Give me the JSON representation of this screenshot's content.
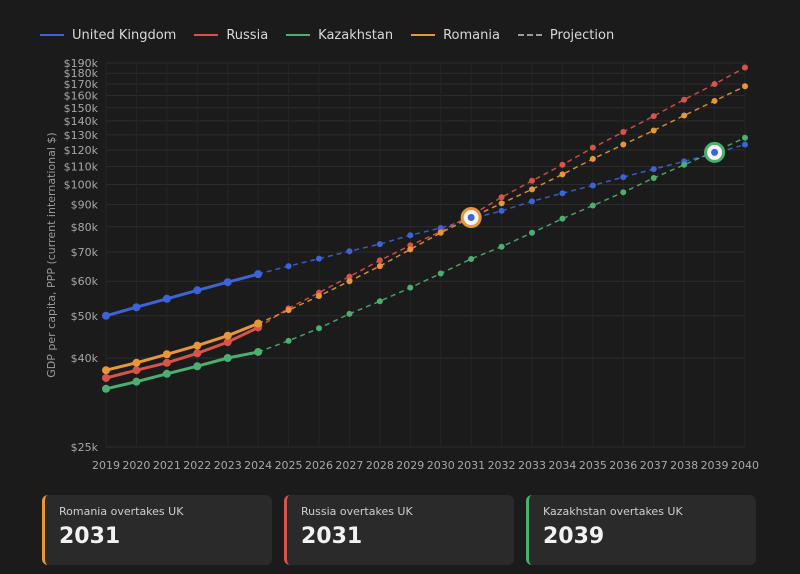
{
  "legend": {
    "items": [
      {
        "label": "United Kingdom",
        "color": "#3d63d6",
        "style": "solid"
      },
      {
        "label": "Russia",
        "color": "#d9534a",
        "style": "solid"
      },
      {
        "label": "Kazakhstan",
        "color": "#4caf6e",
        "style": "solid"
      },
      {
        "label": "Romania",
        "color": "#e8963a",
        "style": "solid"
      },
      {
        "label": "Projection",
        "color": "#9a9a9a",
        "style": "dashed"
      }
    ]
  },
  "cards": [
    {
      "label": "Romania overtakes UK",
      "year": "2031",
      "color": "#e8963a"
    },
    {
      "label": "Russia overtakes UK",
      "year": "2031",
      "color": "#d9534a"
    },
    {
      "label": "Kazakhstan overtakes UK",
      "year": "2039",
      "color": "#4caf6e"
    }
  ],
  "chart_data": {
    "type": "line",
    "ylabel": "GDP per capita, PPP (current international $)",
    "xlabel": "",
    "y_scale": "log",
    "ylim": [
      25000,
      190000
    ],
    "y_ticks": [
      25000,
      40000,
      50000,
      60000,
      70000,
      80000,
      90000,
      100000,
      110000,
      120000,
      130000,
      140000,
      150000,
      160000,
      170000,
      180000,
      190000
    ],
    "y_tick_labels": [
      "$25k",
      "$40k",
      "$50k",
      "$60k",
      "$70k",
      "$80k",
      "$90k",
      "$100k",
      "$110k",
      "$120k",
      "$130k",
      "$140k",
      "$150k",
      "$160k",
      "$170k",
      "$180k",
      "$190k"
    ],
    "x": [
      2019,
      2020,
      2021,
      2022,
      2023,
      2024,
      2025,
      2026,
      2027,
      2028,
      2029,
      2030,
      2031,
      2032,
      2033,
      2034,
      2035,
      2036,
      2037,
      2038,
      2039,
      2040
    ],
    "projection_start": 2024,
    "grid": true,
    "legend_position": "top-left",
    "series": [
      {
        "name": "United Kingdom",
        "color": "#3d63d6",
        "values": [
          50000,
          52300,
          54700,
          57200,
          59700,
          62300,
          65000,
          67600,
          70300,
          73000,
          76500,
          79500,
          83500,
          87000,
          91500,
          95500,
          99500,
          104000,
          108500,
          113000,
          118000,
          123500
        ]
      },
      {
        "name": "Russia",
        "color": "#d9534a",
        "values": [
          36000,
          37500,
          39000,
          41000,
          43500,
          47000,
          52000,
          56500,
          61500,
          67000,
          72500,
          78000,
          85000,
          93500,
          102000,
          111000,
          121500,
          132000,
          143500,
          156500,
          170000,
          185500
        ]
      },
      {
        "name": "Kazakhstan",
        "color": "#4caf6e",
        "values": [
          34000,
          35300,
          36800,
          38300,
          40000,
          41300,
          43800,
          46800,
          50500,
          54000,
          58000,
          62500,
          67500,
          72000,
          77500,
          83500,
          89500,
          96000,
          103500,
          111000,
          119000,
          128000
        ]
      },
      {
        "name": "Romania",
        "color": "#e8963a",
        "values": [
          37500,
          39000,
          40800,
          42700,
          45000,
          48000,
          51500,
          55500,
          60000,
          65000,
          71000,
          77500,
          84000,
          90500,
          97500,
          105500,
          114500,
          123500,
          133000,
          144000,
          155500,
          168000
        ]
      }
    ],
    "crossover_markers": [
      {
        "x": 2031,
        "y": 84000,
        "color": "#e8963a"
      },
      {
        "x": 2039,
        "y": 118500,
        "color": "#4caf6e"
      }
    ]
  }
}
